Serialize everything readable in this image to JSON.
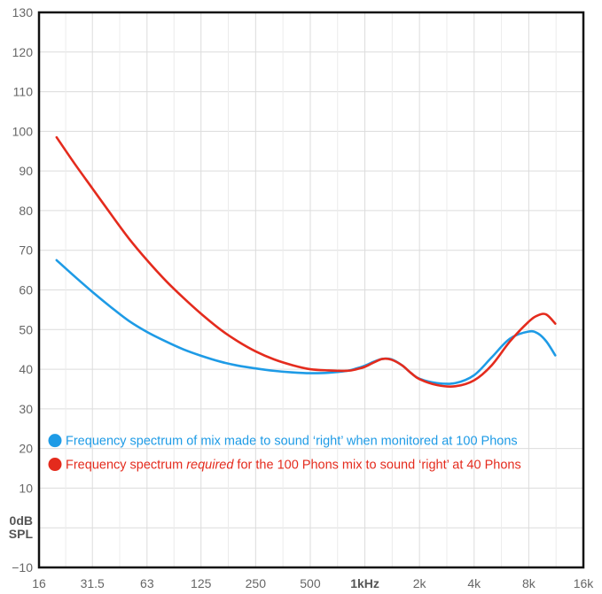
{
  "chart_data": {
    "type": "line",
    "x_scale": "log",
    "xlim": [
      16,
      16000
    ],
    "ylim": [
      -10,
      130
    ],
    "grid": true,
    "legend_placement": "bottom-left",
    "x_ticks": [
      {
        "value": 16,
        "label": "16"
      },
      {
        "value": 31.5,
        "label": "31.5"
      },
      {
        "value": 63,
        "label": "63"
      },
      {
        "value": 125,
        "label": "125"
      },
      {
        "value": 250,
        "label": "250"
      },
      {
        "value": 500,
        "label": "500"
      },
      {
        "value": 1000,
        "label": "1kHz",
        "bold": true
      },
      {
        "value": 2000,
        "label": "2k"
      },
      {
        "value": 4000,
        "label": "4k"
      },
      {
        "value": 8000,
        "label": "8k"
      },
      {
        "value": 16000,
        "label": "16k"
      }
    ],
    "y_ticks": [
      {
        "value": 130,
        "label": "130"
      },
      {
        "value": 120,
        "label": "120"
      },
      {
        "value": 110,
        "label": "110"
      },
      {
        "value": 100,
        "label": "100"
      },
      {
        "value": 90,
        "label": "90"
      },
      {
        "value": 80,
        "label": "80"
      },
      {
        "value": 70,
        "label": "70"
      },
      {
        "value": 60,
        "label": "60"
      },
      {
        "value": 50,
        "label": "50"
      },
      {
        "value": 40,
        "label": "40"
      },
      {
        "value": 30,
        "label": "30"
      },
      {
        "value": 20,
        "label": "20"
      },
      {
        "value": 10,
        "label": "10"
      },
      {
        "value": -10,
        "label": "−10"
      }
    ],
    "zero_label": [
      "0dB",
      "SPL"
    ],
    "series": [
      {
        "key": "blue",
        "color": "#1e9be6",
        "legend": {
          "parts": [
            {
              "text": "Frequency spectrum of mix made to sound ‘right’ when monitored at 100 Phons",
              "italic": false
            }
          ]
        },
        "points": [
          [
            20,
            67.5
          ],
          [
            25,
            63.5
          ],
          [
            31.5,
            59.5
          ],
          [
            40,
            55.6
          ],
          [
            50,
            52.2
          ],
          [
            63,
            49.4
          ],
          [
            80,
            47.0
          ],
          [
            100,
            45.0
          ],
          [
            125,
            43.4
          ],
          [
            160,
            41.9
          ],
          [
            200,
            40.9
          ],
          [
            250,
            40.2
          ],
          [
            315,
            39.6
          ],
          [
            400,
            39.2
          ],
          [
            500,
            39.0
          ],
          [
            630,
            39.1
          ],
          [
            800,
            39.6
          ],
          [
            900,
            40.2
          ],
          [
            1000,
            40.9
          ],
          [
            1120,
            41.9
          ],
          [
            1250,
            42.6
          ],
          [
            1400,
            42.5
          ],
          [
            1600,
            41.0
          ],
          [
            1800,
            39.0
          ],
          [
            2000,
            37.6
          ],
          [
            2500,
            36.5
          ],
          [
            3150,
            36.5
          ],
          [
            4000,
            38.5
          ],
          [
            5000,
            43.0
          ],
          [
            6300,
            47.7
          ],
          [
            8000,
            49.5
          ],
          [
            9000,
            49.0
          ],
          [
            10000,
            47.0
          ],
          [
            11200,
            43.5
          ]
        ]
      },
      {
        "key": "red",
        "color": "#e42b1d",
        "legend": {
          "parts": [
            {
              "text": "Frequency spectrum ",
              "italic": false
            },
            {
              "text": "required",
              "italic": true
            },
            {
              "text": " for the 100 Phons mix to sound ‘right’ at 40 Phons",
              "italic": false
            }
          ]
        },
        "points": [
          [
            20,
            98.5
          ],
          [
            25,
            92.0
          ],
          [
            31.5,
            85.6
          ],
          [
            40,
            79.0
          ],
          [
            50,
            73.0
          ],
          [
            63,
            67.5
          ],
          [
            80,
            62.3
          ],
          [
            100,
            58.0
          ],
          [
            125,
            54.0
          ],
          [
            160,
            50.0
          ],
          [
            200,
            47.0
          ],
          [
            250,
            44.5
          ],
          [
            315,
            42.5
          ],
          [
            400,
            41.0
          ],
          [
            500,
            40.0
          ],
          [
            630,
            39.7
          ],
          [
            800,
            39.6
          ],
          [
            900,
            40.0
          ],
          [
            1000,
            40.6
          ],
          [
            1120,
            41.7
          ],
          [
            1250,
            42.6
          ],
          [
            1400,
            42.4
          ],
          [
            1600,
            41.0
          ],
          [
            1800,
            39.0
          ],
          [
            2000,
            37.5
          ],
          [
            2500,
            36.0
          ],
          [
            3150,
            35.7
          ],
          [
            4000,
            37.2
          ],
          [
            5000,
            41.0
          ],
          [
            6300,
            47.0
          ],
          [
            8000,
            52.0
          ],
          [
            9000,
            53.6
          ],
          [
            10000,
            53.8
          ],
          [
            11200,
            51.5
          ]
        ]
      }
    ]
  }
}
